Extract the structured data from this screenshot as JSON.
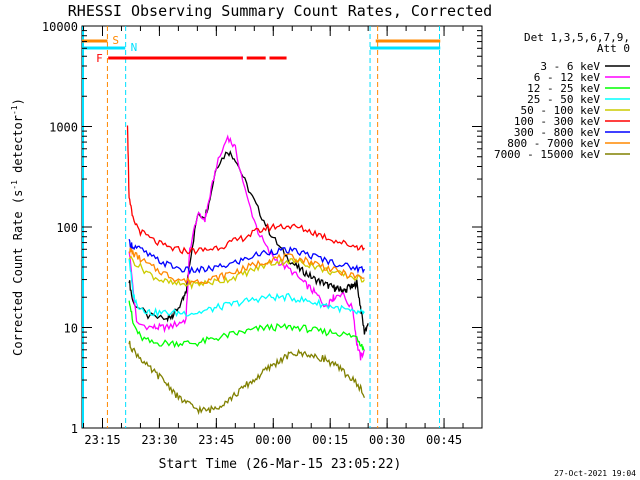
{
  "chart_data": {
    "type": "line",
    "title": "RHESSI Observing Summary Count Rates, Corrected",
    "ylabel_prefix": "Corrected Count Rate (s",
    "ylabel_exp1": "-1",
    "ylabel_mid": " detector",
    "ylabel_exp2": "-1",
    "ylabel_suffix": ")",
    "xlabel": "Start Time (26-Mar-15 23:05:22)",
    "yscale": "log",
    "ylim": [
      1,
      10000
    ],
    "xlim_minutes": [
      -5.4,
      100
    ],
    "x_ticks": [
      {
        "label": "23:15",
        "min": 0
      },
      {
        "label": "23:30",
        "min": 15
      },
      {
        "label": "23:45",
        "min": 30
      },
      {
        "label": "00:00",
        "min": 45
      },
      {
        "label": "00:15",
        "min": 60
      },
      {
        "label": "00:30",
        "min": 75
      },
      {
        "label": "00:45",
        "min": 90
      }
    ],
    "y_ticks": [
      {
        "label": "1",
        "value": 1
      },
      {
        "label": "10",
        "value": 10
      },
      {
        "label": "100",
        "value": 100
      },
      {
        "label": "1000",
        "value": 1000
      },
      {
        "label": "10000",
        "value": 10000
      }
    ],
    "legend_title": [
      "Det 1,3,5,6,7,9,",
      "Att 0"
    ],
    "legend_position": "top-right",
    "x_time_axis_note": "x values are minutes after 23:15",
    "series": [
      {
        "name": "3 - 6 keV",
        "color": "#000000",
        "x": [
          7,
          8,
          12,
          17,
          18,
          19,
          21,
          22,
          23,
          25,
          27,
          28,
          30,
          33,
          35,
          38,
          41,
          44,
          47,
          50,
          52,
          54,
          56,
          58,
          59.5,
          61,
          62,
          63,
          64,
          65,
          66,
          67,
          68,
          69,
          70
        ],
        "y": [
          30,
          18,
          13,
          12,
          13,
          14,
          18,
          22,
          45,
          130,
          130,
          170,
          400,
          570,
          480,
          260,
          150,
          90,
          60,
          44,
          38,
          34,
          30,
          28,
          26,
          25,
          24,
          24,
          23,
          26,
          25,
          28,
          16,
          9,
          11
        ]
      },
      {
        "name": "6 - 12 keV",
        "color": "#ff00ff",
        "x": [
          7,
          9,
          13,
          15,
          17,
          20,
          22,
          23,
          25,
          27,
          28,
          30,
          33,
          35,
          38,
          41,
          44,
          47,
          50,
          53,
          55,
          57,
          59,
          60,
          61,
          63,
          66,
          67,
          68,
          69
        ],
        "y": [
          60,
          11,
          10,
          10,
          10,
          11,
          12,
          60,
          130,
          120,
          180,
          400,
          800,
          600,
          200,
          90,
          55,
          43,
          36,
          28,
          24,
          20,
          16,
          19,
          20,
          22,
          15,
          7,
          5,
          6
        ]
      },
      {
        "name": "12 - 25 keV",
        "color": "#00ff00",
        "x": [
          7,
          8,
          10,
          13,
          16,
          19,
          22,
          25,
          28,
          31,
          34,
          37,
          40,
          43,
          46,
          49,
          52,
          55,
          58,
          61,
          64,
          67,
          68,
          69
        ],
        "y": [
          20,
          11,
          8,
          7,
          7,
          7,
          7,
          7,
          7.5,
          8,
          8.5,
          9,
          9.5,
          10,
          10,
          10,
          10,
          9.5,
          9,
          9,
          8.5,
          8,
          7,
          6
        ]
      },
      {
        "name": "25 - 50 keV",
        "color": "#00ffff",
        "x": [
          7,
          8,
          9,
          11,
          13,
          16,
          19,
          22,
          25,
          28,
          31,
          34,
          37,
          40,
          43,
          46,
          49,
          52,
          55,
          58,
          61,
          64,
          66,
          68,
          69
        ],
        "y": [
          50,
          22,
          17,
          15,
          14,
          14,
          14,
          14,
          14,
          15,
          16,
          17,
          18,
          19,
          20,
          20,
          20,
          19,
          18,
          17,
          16,
          15,
          14,
          14,
          14
        ]
      },
      {
        "name": "50 - 100 keV",
        "color": "#cccc00",
        "x": [
          7,
          10,
          13,
          16,
          19,
          22,
          25,
          28,
          31,
          34,
          37,
          40,
          43,
          46,
          49,
          52,
          55,
          58,
          61,
          64,
          67,
          69
        ],
        "y": [
          50,
          40,
          33,
          29,
          27,
          27,
          27,
          28,
          29,
          31,
          34,
          38,
          42,
          45,
          46,
          45,
          42,
          38,
          35,
          33,
          31,
          30
        ]
      },
      {
        "name": "100 - 300 keV",
        "color": "#ff0000",
        "x": [
          6.6,
          7,
          8,
          10,
          13,
          16,
          19,
          22,
          25,
          28,
          31,
          34,
          37,
          40,
          43,
          46,
          49,
          52,
          55,
          58,
          61,
          64,
          67,
          69
        ],
        "y": [
          1100,
          190,
          120,
          90,
          75,
          65,
          60,
          58,
          58,
          60,
          64,
          70,
          78,
          88,
          97,
          102,
          102,
          98,
          90,
          82,
          74,
          68,
          64,
          62
        ]
      },
      {
        "name": "300 - 800 keV",
        "color": "#0000ff",
        "x": [
          7,
          8,
          10,
          13,
          16,
          19,
          22,
          25,
          28,
          31,
          34,
          37,
          40,
          43,
          46,
          49,
          52,
          55,
          58,
          61,
          64,
          67,
          69
        ],
        "y": [
          70,
          65,
          60,
          50,
          44,
          40,
          37,
          37,
          38,
          40,
          43,
          47,
          52,
          56,
          58,
          58,
          56,
          52,
          48,
          44,
          41,
          39,
          38
        ]
      },
      {
        "name": "800 - 7000 keV",
        "color": "#ff8800",
        "x": [
          7,
          8,
          10,
          13,
          16,
          19,
          22,
          25,
          28,
          31,
          34,
          37,
          40,
          43,
          46,
          49,
          52,
          55,
          58,
          61,
          64,
          67,
          69
        ],
        "y": [
          60,
          55,
          48,
          40,
          35,
          31,
          29,
          29,
          30,
          32,
          35,
          38,
          42,
          46,
          49,
          50,
          48,
          45,
          41,
          37,
          34,
          32,
          31
        ]
      },
      {
        "name": "7000 - 15000 keV",
        "color": "#808000",
        "x": [
          7,
          8,
          10,
          12,
          14,
          16,
          18,
          20,
          22,
          24,
          26,
          28,
          30,
          32,
          34,
          36,
          38,
          40,
          42,
          44,
          46,
          48,
          50,
          52,
          54,
          56,
          58,
          60,
          62,
          64,
          66,
          68,
          69
        ],
        "y": [
          7,
          6,
          5,
          4,
          3.5,
          3,
          2.5,
          2,
          1.8,
          1.6,
          1.5,
          1.5,
          1.6,
          1.8,
          2,
          2.3,
          2.7,
          3,
          3.5,
          4,
          4.5,
          5,
          5.5,
          5.5,
          5.5,
          5,
          5,
          4.5,
          4,
          3.5,
          3,
          2.5,
          2
        ]
      }
    ],
    "annotations": {
      "saa_label": "S",
      "night_label": "N",
      "flare_label": "F",
      "flare_segments_min": [
        [
          1.5,
          37
        ],
        [
          38,
          43
        ],
        [
          44,
          48.5
        ]
      ],
      "saa_bars_min": [
        [
          -5.4,
          1.3
        ],
        [
          72,
          89
        ]
      ],
      "night_bars_min": [
        [
          -5.4,
          6
        ],
        [
          70.5,
          89
        ]
      ],
      "orange_vlines_min": [
        1.3,
        72.5
      ],
      "cyan_vlines_min": [
        6.1,
        70.5,
        88.8
      ]
    },
    "footer_timestamp": "27-Oct-2021 19:04"
  }
}
